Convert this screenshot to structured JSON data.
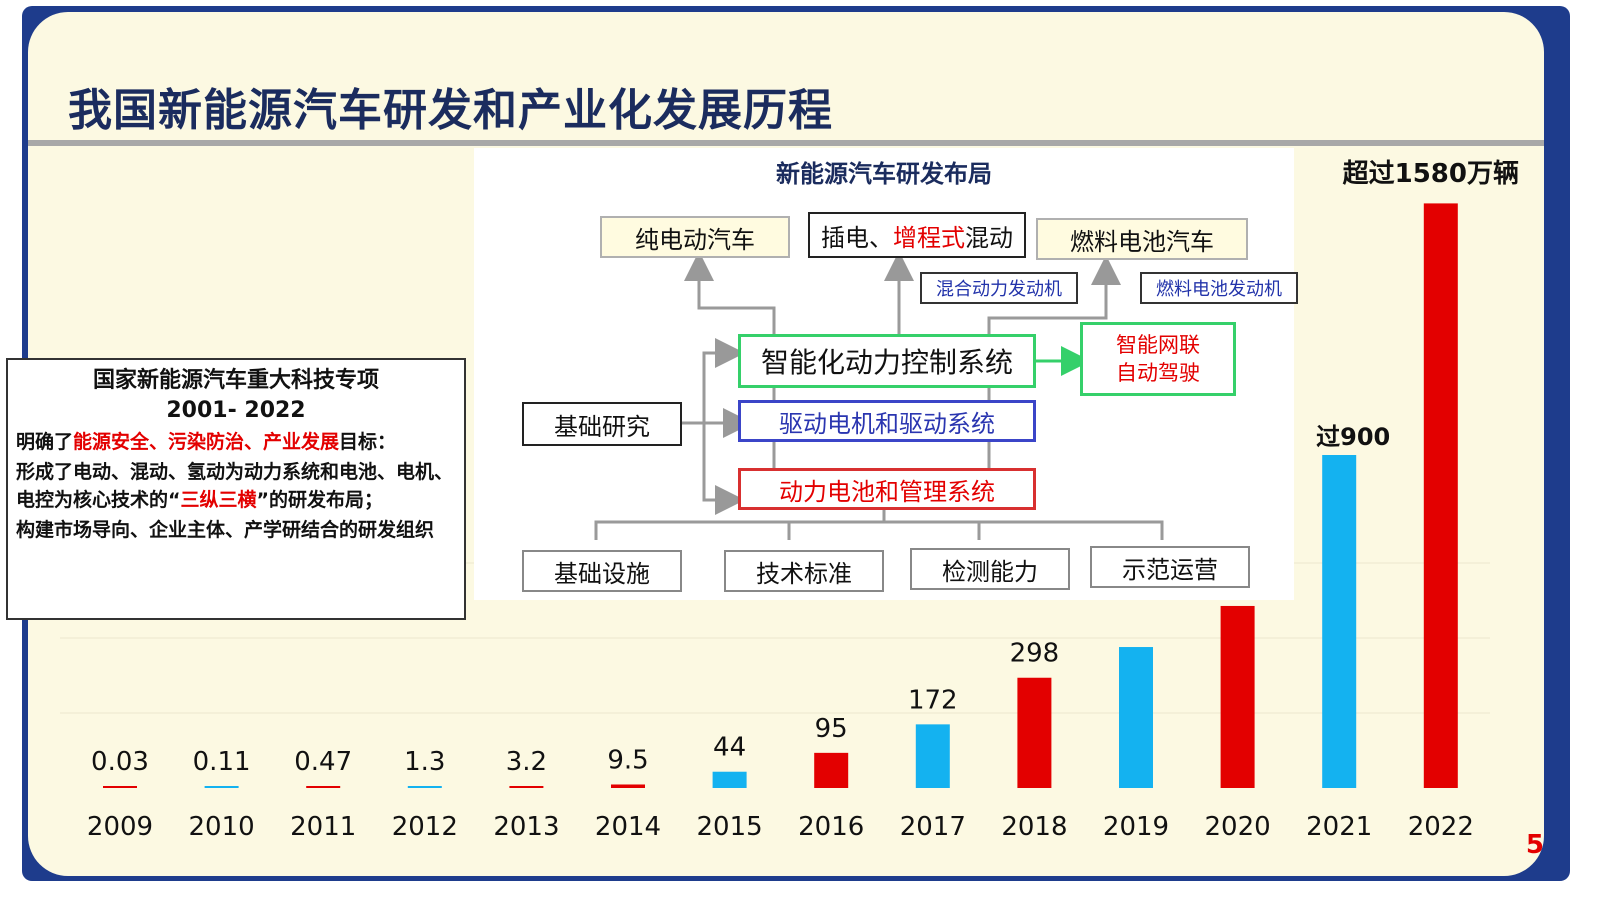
{
  "title": "我国新能源汽车研发和产业化发展历程",
  "page_number": "5",
  "colors": {
    "red": "#e30000",
    "blue": "#14b2f0",
    "navy": "#1b2c5e",
    "frame": "#1e3c8c"
  },
  "chart_data": {
    "type": "bar",
    "categories": [
      "2009",
      "2010",
      "2011",
      "2012",
      "2013",
      "2014",
      "2015",
      "2016",
      "2017",
      "2018",
      "2019",
      "2020",
      "2021",
      "2022"
    ],
    "values": [
      0.03,
      0.11,
      0.47,
      1.3,
      3.2,
      9.5,
      44,
      95,
      172,
      298,
      381,
      492,
      900,
      1580
    ],
    "data_labels": [
      "0.03",
      "0.11",
      "0.47",
      "1.3",
      "3.2",
      "9.5",
      "44",
      "95",
      "172",
      "298",
      "",
      "",
      "过900",
      "超过1580万辆"
    ],
    "bar_colors": [
      "#e30000",
      "#14b2f0",
      "#e30000",
      "#14b2f0",
      "#e30000",
      "#e30000",
      "#14b2f0",
      "#e30000",
      "#14b2f0",
      "#e30000",
      "#14b2f0",
      "#e30000",
      "#14b2f0",
      "#e30000"
    ],
    "ylim": [
      0,
      1600
    ],
    "grid": true,
    "title": "",
    "xlabel": "",
    "ylabel": ""
  },
  "diagram": {
    "title": "新能源汽车研发布局",
    "top": {
      "bev": "纯电动汽车",
      "phev_a": "插电、",
      "phev_b": "增程式",
      "phev_c": "混动",
      "fcev": "燃料电池汽车"
    },
    "hybrid_engine": "混合动力发动机",
    "fuel_cell_engine": "燃料电池发动机",
    "control": "智能化动力控制系统",
    "intelligent_a": "智能网联",
    "intelligent_b": "自动驾驶",
    "basic_research": "基础研究",
    "motor": "驱动电机和驱动系统",
    "battery": "动力电池和管理系统",
    "bottom": [
      "基础设施",
      "技术标准",
      "检测能力",
      "示范运营"
    ]
  },
  "info": {
    "heading1": "国家新能源汽车重大科技专项",
    "heading2": "2001- 2022",
    "p1_a": "明确了",
    "p1_b": "能源安全、污染防治、产业发展",
    "p1_c": "目标：",
    "p2_a": "形成了电动、混动、氢动为动力系统和电池、电机、电控为核心技术的“",
    "p2_b": "三纵三横",
    "p2_c": "”的研发布局；",
    "p3": "构建市场导向、企业主体、产学研结合的研发组织"
  }
}
